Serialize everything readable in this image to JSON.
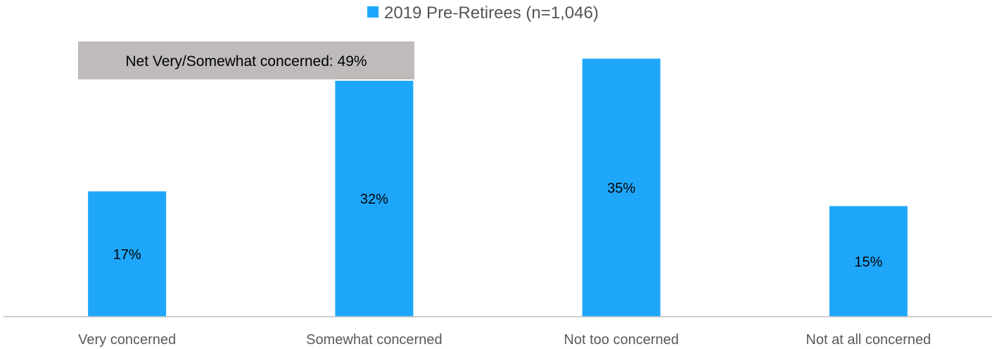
{
  "chart_data": {
    "type": "bar",
    "categories": [
      "Very concerned",
      "Somewhat concerned",
      "Not too concerned",
      "Not at all concerned"
    ],
    "series": [
      {
        "name": "2019 Pre-Retirees (n=1,046)",
        "values": [
          17,
          32,
          35,
          15
        ],
        "labels": [
          "17%",
          "32%",
          "35%",
          "15%"
        ],
        "color": "#1EA7FA"
      }
    ],
    "ylim": [
      0,
      36
    ],
    "grid": false,
    "legend": "top-center",
    "annotation": {
      "text": "Net Very/Somewhat concerned: 49%",
      "background": "#BEBBBA"
    },
    "axis_color": "#BFBFBF"
  }
}
